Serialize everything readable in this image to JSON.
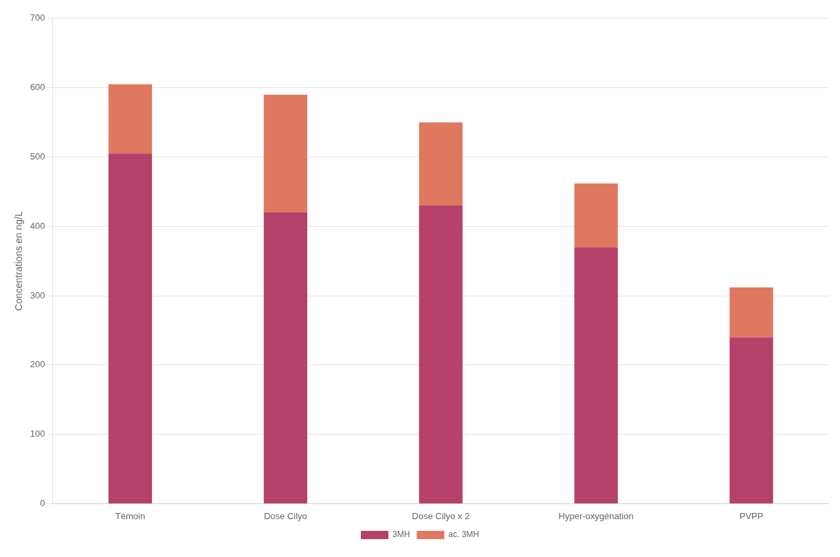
{
  "chart_data": {
    "type": "bar",
    "stacked": true,
    "categories": [
      "Témoin",
      "Dose Cilyo",
      "Dose Cilyo x 2",
      "Hyper-oxygénation",
      "PVPP"
    ],
    "series": [
      {
        "name": "3MH",
        "color": "#B5406A",
        "values": [
          505,
          420,
          430,
          370,
          240
        ]
      },
      {
        "name": "ac. 3MH",
        "color": "#E07860",
        "values": [
          100,
          170,
          120,
          92,
          72
        ]
      }
    ],
    "ylabel": "Concentrations en ng/L",
    "ylim": [
      0,
      700
    ],
    "yticks": [
      0,
      100,
      200,
      300,
      400,
      500,
      600,
      700
    ],
    "grid": true,
    "legend": "bottom"
  }
}
